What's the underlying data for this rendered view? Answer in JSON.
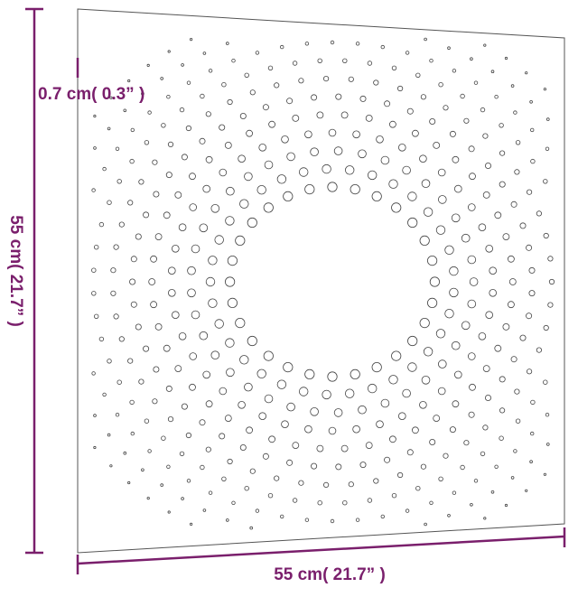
{
  "dimensions": {
    "thickness": "0.7 cm( 0.3” )",
    "height": "55 cm( 21.7” )",
    "width": "55 cm( 21.7” )"
  }
}
